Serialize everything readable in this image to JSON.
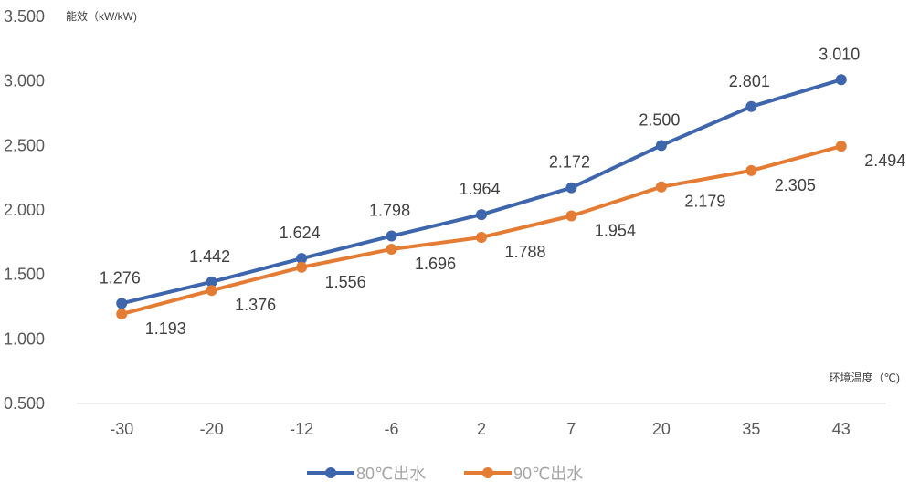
{
  "chart_data": {
    "type": "line",
    "categories": [
      "-30",
      "-20",
      "-12",
      "-6",
      "2",
      "7",
      "20",
      "35",
      "43"
    ],
    "series": [
      {
        "name": "80℃出水",
        "color": "#3e66ad",
        "values": [
          1.276,
          1.442,
          1.624,
          1.798,
          1.964,
          2.172,
          2.5,
          2.801,
          3.01
        ],
        "labels": [
          "1.276",
          "1.442",
          "1.624",
          "1.798",
          "1.964",
          "2.172",
          "2.500",
          "2.801",
          "3.010"
        ]
      },
      {
        "name": "90℃出水",
        "color": "#e57c34",
        "values": [
          1.193,
          1.376,
          1.556,
          1.696,
          1.788,
          1.954,
          2.179,
          2.305,
          2.494
        ],
        "labels": [
          "1.193",
          "1.376",
          "1.556",
          "1.696",
          "1.788",
          "1.954",
          "2.179",
          "2.305",
          "2.494"
        ]
      }
    ],
    "ylabel": "能效（kW/kW)",
    "xlabel": "环境温度（℃)",
    "ylim": [
      0.5,
      3.5
    ],
    "yticks": [
      0.5,
      1.0,
      1.5,
      2.0,
      2.5,
      3.0,
      3.5
    ],
    "ytick_labels": [
      "0.500",
      "1.000",
      "1.500",
      "2.000",
      "2.500",
      "3.000",
      "3.500"
    ],
    "grid": false,
    "legend": "bottom-center"
  }
}
